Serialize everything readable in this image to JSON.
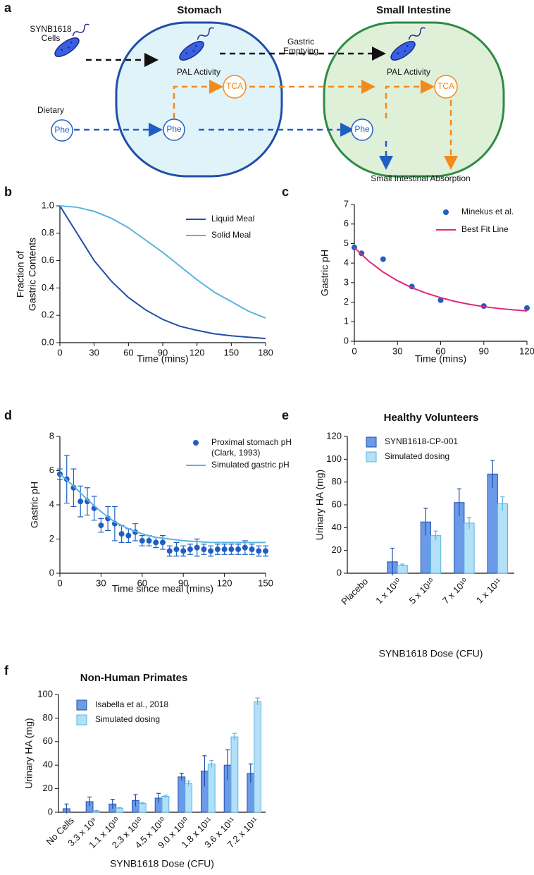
{
  "diagram": {
    "panel": "a",
    "stomach": "Stomach",
    "small_intestine": "Small Intestine",
    "cells": [
      "SYNB1618",
      "Cells"
    ],
    "dietary": "Dietary",
    "phe": "Phe",
    "gastric_emptying": [
      "Gastric",
      "Emptying"
    ],
    "pal_activity": "PAL Activity",
    "tca": "TCA",
    "absorption": "Small Intestinal Absorption"
  },
  "chart_data": [
    {
      "type": "line",
      "panel": "b",
      "xlabel": "Time (mins)",
      "ylabel": [
        "Fraction of",
        "Gastric Contents"
      ],
      "xlim": [
        0,
        180
      ],
      "ylim": [
        0,
        1
      ],
      "xticks": [
        0,
        30,
        60,
        90,
        120,
        150,
        180
      ],
      "yticks": [
        {
          "value": 0,
          "label": "0.0"
        },
        0.2,
        0.4,
        0.6,
        0.8,
        {
          "value": 1,
          "label": "1.0"
        }
      ],
      "series": [
        {
          "name": "Liquid Meal",
          "color": "#1f4fa8",
          "x": [
            0,
            15,
            30,
            45,
            60,
            75,
            90,
            105,
            120,
            135,
            150,
            165,
            180
          ],
          "values": [
            1.0,
            0.8,
            0.6,
            0.45,
            0.33,
            0.24,
            0.17,
            0.12,
            0.09,
            0.065,
            0.05,
            0.04,
            0.03
          ]
        },
        {
          "name": "Solid Meal",
          "color": "#5ab4e0",
          "x": [
            0,
            15,
            30,
            45,
            60,
            75,
            90,
            105,
            120,
            135,
            150,
            165,
            180
          ],
          "values": [
            1.0,
            0.99,
            0.96,
            0.91,
            0.84,
            0.75,
            0.66,
            0.56,
            0.46,
            0.37,
            0.3,
            0.23,
            0.18
          ]
        }
      ]
    },
    {
      "type": "scatter",
      "panel": "c",
      "xlabel": "Time (mins)",
      "ylabel": [
        "Gastric pH"
      ],
      "xlim": [
        0,
        120
      ],
      "ylim": [
        0,
        7
      ],
      "xticks": [
        0,
        30,
        60,
        90,
        120
      ],
      "yticks": [
        0,
        1,
        2,
        3,
        4,
        5,
        6,
        7
      ],
      "series": [
        {
          "name": "Minekus et al.",
          "type": "scatter",
          "color": "#1f5fc4",
          "x": [
            0,
            5,
            20,
            40,
            60,
            90,
            120
          ],
          "values": [
            4.8,
            4.5,
            4.2,
            2.8,
            2.1,
            1.8,
            1.7
          ]
        },
        {
          "name": "Best Fit Line",
          "type": "line",
          "color": "#e0287a",
          "x": [
            0,
            10,
            20,
            30,
            40,
            50,
            60,
            70,
            80,
            90,
            100,
            110,
            120
          ],
          "values": [
            4.8,
            4.1,
            3.54,
            3.1,
            2.74,
            2.46,
            2.23,
            2.04,
            1.89,
            1.77,
            1.68,
            1.61,
            1.55
          ]
        }
      ]
    },
    {
      "type": "scatter",
      "panel": "d",
      "xlabel": "Time since meal (mins)",
      "ylabel": [
        "Gastric pH"
      ],
      "xlim": [
        0,
        150
      ],
      "ylim": [
        0,
        8
      ],
      "xticks": [
        0,
        30,
        60,
        90,
        120,
        150
      ],
      "yticks": [
        0,
        2,
        4,
        6,
        8
      ],
      "series": [
        {
          "name": "Proximal stomach pH (Clark, 1993)",
          "type": "scatter",
          "color": "#1f5fc4",
          "x": [
            0,
            5,
            10,
            15,
            20,
            25,
            30,
            35,
            40,
            45,
            50,
            55,
            60,
            65,
            70,
            75,
            80,
            85,
            90,
            95,
            100,
            105,
            110,
            115,
            120,
            125,
            130,
            135,
            140,
            145,
            150
          ],
          "values": [
            5.8,
            5.5,
            5.0,
            4.2,
            4.2,
            3.8,
            2.8,
            3.2,
            2.9,
            2.3,
            2.2,
            2.4,
            1.9,
            1.9,
            1.8,
            1.8,
            1.3,
            1.4,
            1.3,
            1.4,
            1.5,
            1.4,
            1.3,
            1.4,
            1.4,
            1.4,
            1.4,
            1.5,
            1.4,
            1.3,
            1.3
          ],
          "errors": [
            0.3,
            1.4,
            1.1,
            0.9,
            0.8,
            0.7,
            0.4,
            0.7,
            1.0,
            0.5,
            0.4,
            0.5,
            0.3,
            0.3,
            0.3,
            0.4,
            0.3,
            0.4,
            0.3,
            0.3,
            0.5,
            0.3,
            0.3,
            0.3,
            0.3,
            0.3,
            0.3,
            0.4,
            0.3,
            0.3,
            0.3
          ]
        },
        {
          "name": "Simulated gastric pH",
          "type": "line",
          "color": "#5ab4e0",
          "x": [
            0,
            10,
            20,
            30,
            40,
            50,
            60,
            70,
            80,
            90,
            100,
            110,
            120,
            130,
            140,
            150
          ],
          "values": [
            5.8,
            5.1,
            4.3,
            3.6,
            3.0,
            2.6,
            2.3,
            2.1,
            2.0,
            1.9,
            1.85,
            1.8,
            1.8,
            1.8,
            1.8,
            1.8
          ]
        }
      ]
    },
    {
      "type": "bar",
      "panel": "e",
      "title": "Healthy Volunteers",
      "xlabel": "SYNB1618 Dose (CFU)",
      "ylabel": [
        "Urinary HA (mg)"
      ],
      "ylim": [
        0,
        120
      ],
      "yticks": [
        0,
        20,
        40,
        60,
        80,
        100,
        120
      ],
      "categories": [
        "Placebo",
        "1 x 10¹⁰",
        "5 x 10¹⁰",
        "7 x 10¹⁰",
        "1 x 10¹¹"
      ],
      "series": [
        {
          "name": "SYNB1618-CP-001",
          "color": "#6b9be8",
          "edgecolor": "#1f4fa8",
          "values": [
            0,
            10,
            45,
            62,
            87
          ],
          "errors": [
            0,
            12,
            12,
            12,
            12
          ]
        },
        {
          "name": "Simulated dosing",
          "color": "#b3e0f7",
          "edgecolor": "#5ab4e0",
          "values": [
            0,
            7,
            33,
            44,
            61
          ],
          "errors": [
            0,
            1,
            4,
            5,
            6
          ]
        }
      ]
    },
    {
      "type": "bar",
      "panel": "f",
      "title": "Non-Human Primates",
      "xlabel": "SYNB1618 Dose (CFU)",
      "ylabel": [
        "Urinary HA (mg)"
      ],
      "ylim": [
        0,
        100
      ],
      "yticks": [
        0,
        20,
        40,
        60,
        80,
        100
      ],
      "categories": [
        "No Cells",
        "3.3 x 10⁹",
        "1.1 x 10¹⁰",
        "2.3 x 10¹⁰",
        "4.5 x 10¹⁰",
        "9.0 x 10¹⁰",
        "1.8 x 10¹¹",
        "3.6 x 10¹¹",
        "7.2 x 10¹¹"
      ],
      "series": [
        {
          "name": "Isabella et al., 2018",
          "color": "#6b9be8",
          "edgecolor": "#1f4fa8",
          "values": [
            3,
            9,
            7,
            10,
            12,
            30,
            35,
            40,
            33
          ],
          "errors": [
            4,
            4,
            4,
            5,
            4,
            3,
            13,
            13,
            8
          ]
        },
        {
          "name": "Simulated dosing",
          "color": "#b3e0f7",
          "edgecolor": "#5ab4e0",
          "values": [
            null,
            1,
            3.5,
            7.5,
            13.5,
            24.5,
            41,
            64,
            94
          ],
          "errors": [
            null,
            0.5,
            0.5,
            1,
            1,
            2,
            3,
            3,
            3
          ]
        }
      ]
    }
  ]
}
